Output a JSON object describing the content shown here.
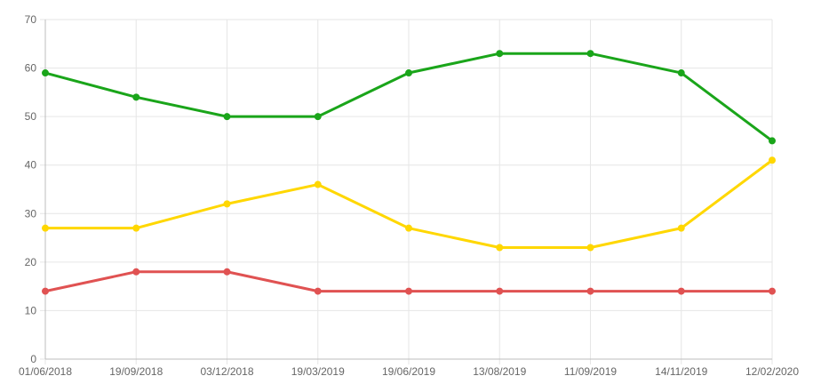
{
  "chart_data": {
    "type": "line",
    "title": "",
    "xlabel": "",
    "ylabel": "",
    "categories": [
      "01/06/2018",
      "19/09/2018",
      "03/12/2018",
      "19/03/2019",
      "19/06/2019",
      "13/08/2019",
      "11/09/2019",
      "14/11/2019",
      "12/02/2020"
    ],
    "ylim": [
      0,
      70
    ],
    "yticks": [
      0,
      10,
      20,
      30,
      40,
      50,
      60,
      70
    ],
    "grid": true,
    "legend": "none",
    "series": [
      {
        "color": "#1aa51a",
        "values": [
          59,
          54,
          50,
          50,
          59,
          63,
          63,
          59,
          45
        ]
      },
      {
        "color": "#ffd700",
        "values": [
          27,
          27,
          32,
          36,
          27,
          23,
          23,
          27,
          41
        ]
      },
      {
        "color": "#e05252",
        "values": [
          14,
          18,
          18,
          14,
          14,
          14,
          14,
          14,
          14
        ]
      }
    ]
  }
}
